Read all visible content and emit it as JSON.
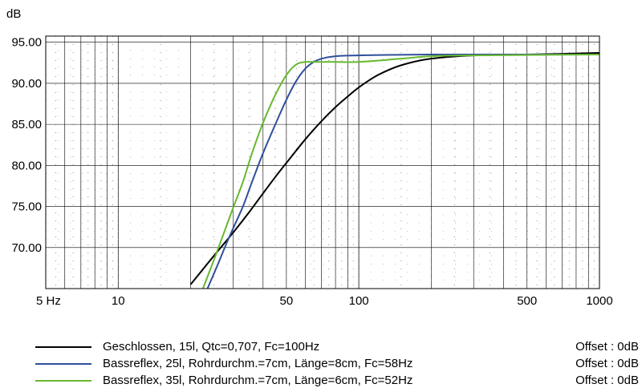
{
  "chart_data": {
    "type": "line",
    "ylabel": "dB",
    "x_scale": "log",
    "xlim": [
      5,
      1000
    ],
    "ylim": [
      65.0,
      95.0
    ],
    "x_ticks": [
      {
        "value": 5,
        "label": "5 Hz"
      },
      {
        "value": 10,
        "label": "10"
      },
      {
        "value": 50,
        "label": "50"
      },
      {
        "value": 100,
        "label": "100"
      },
      {
        "value": 500,
        "label": "500"
      },
      {
        "value": 1000,
        "label": "1000"
      }
    ],
    "y_ticks": [
      {
        "value": 95.0,
        "label": "95.00"
      },
      {
        "value": 90.0,
        "label": "90.00"
      },
      {
        "value": 85.0,
        "label": "85.00"
      },
      {
        "value": 80.0,
        "label": "80.00"
      },
      {
        "value": 75.0,
        "label": "75.00"
      },
      {
        "value": 70.0,
        "label": "70.00"
      }
    ],
    "grid": true,
    "legend_position": "bottom",
    "series": [
      {
        "name": "Geschlossen, 15l, Qtc=0,707, Fc=100Hz",
        "offset": "Offset : 0dB",
        "color": "#000000",
        "x": [
          20,
          25,
          30,
          35,
          40,
          45,
          50,
          60,
          70,
          80,
          90,
          100,
          120,
          150,
          200,
          300,
          500,
          1000
        ],
        "y": [
          65.5,
          69.0,
          71.8,
          74.3,
          76.6,
          78.6,
          80.3,
          83.2,
          85.4,
          87.1,
          88.4,
          89.5,
          91.0,
          92.2,
          93.0,
          93.4,
          93.5,
          93.7
        ]
      },
      {
        "name": "Bassreflex, 25l, Rohrdurchm.=7cm, Länge=8cm, Fc=58Hz",
        "offset": "Offset : 0dB",
        "color": "#2f4f9a",
        "x": [
          23.5,
          26,
          28,
          30,
          33,
          36,
          40,
          45,
          50,
          55,
          60,
          65,
          70,
          80,
          100,
          200,
          1000
        ],
        "y": [
          65.0,
          68.0,
          70.3,
          72.3,
          75.0,
          78.0,
          81.5,
          85.0,
          88.0,
          90.3,
          91.8,
          92.6,
          93.0,
          93.3,
          93.4,
          93.5,
          93.5
        ]
      },
      {
        "name": "Bassreflex, 35l, Rohrdurchm.=7cm, Länge=6cm, Fc=52Hz",
        "offset": "Offset : 0dB",
        "color": "#66b82e",
        "x": [
          22.5,
          25,
          28,
          30,
          33,
          36,
          40,
          45,
          50,
          55,
          60,
          65,
          70,
          80,
          100,
          150,
          200,
          300,
          1000
        ],
        "y": [
          65.0,
          68.5,
          72.4,
          74.8,
          78.0,
          81.5,
          85.2,
          88.6,
          91.0,
          92.3,
          92.6,
          92.6,
          92.6,
          92.6,
          92.6,
          93.0,
          93.3,
          93.4,
          93.5
        ]
      }
    ]
  }
}
